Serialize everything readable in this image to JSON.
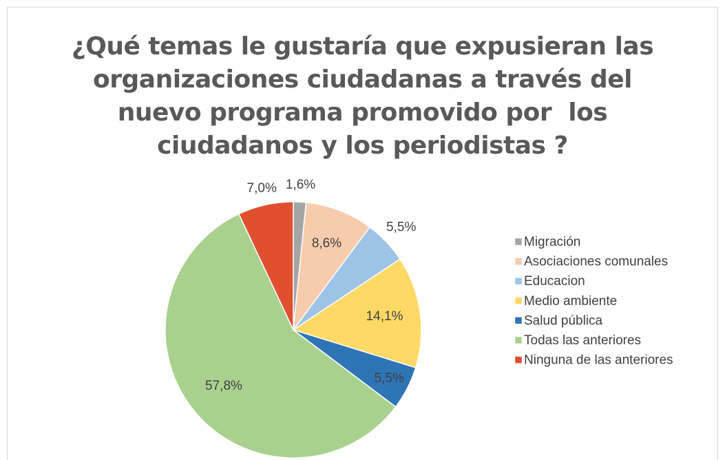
{
  "chart_data": {
    "type": "pie",
    "title": "¿Qué temas le gustaría que expusieran las organizaciones ciudadanas a través del nuevo programa promovido por  los ciudadanos y los periodistas ?",
    "categories": [
      "Migración",
      "Asociaciones comunales",
      "Educacion",
      "Medio ambiente",
      "Salud pública",
      "Todas las anteriores",
      "Ninguna de las anteriores"
    ],
    "values": [
      1.6,
      8.6,
      5.5,
      14.1,
      5.5,
      57.8,
      7.0
    ],
    "value_labels": [
      "1,6%",
      "8,6%",
      "5,5%",
      "14,1%",
      "5,5%",
      "57,8%",
      "7,0%"
    ],
    "colors": [
      "#a5a5a5",
      "#f8cbad",
      "#9dc3e6",
      "#ffd966",
      "#2e75b6",
      "#a9d18e",
      "#e0502f"
    ],
    "legend": "right"
  }
}
